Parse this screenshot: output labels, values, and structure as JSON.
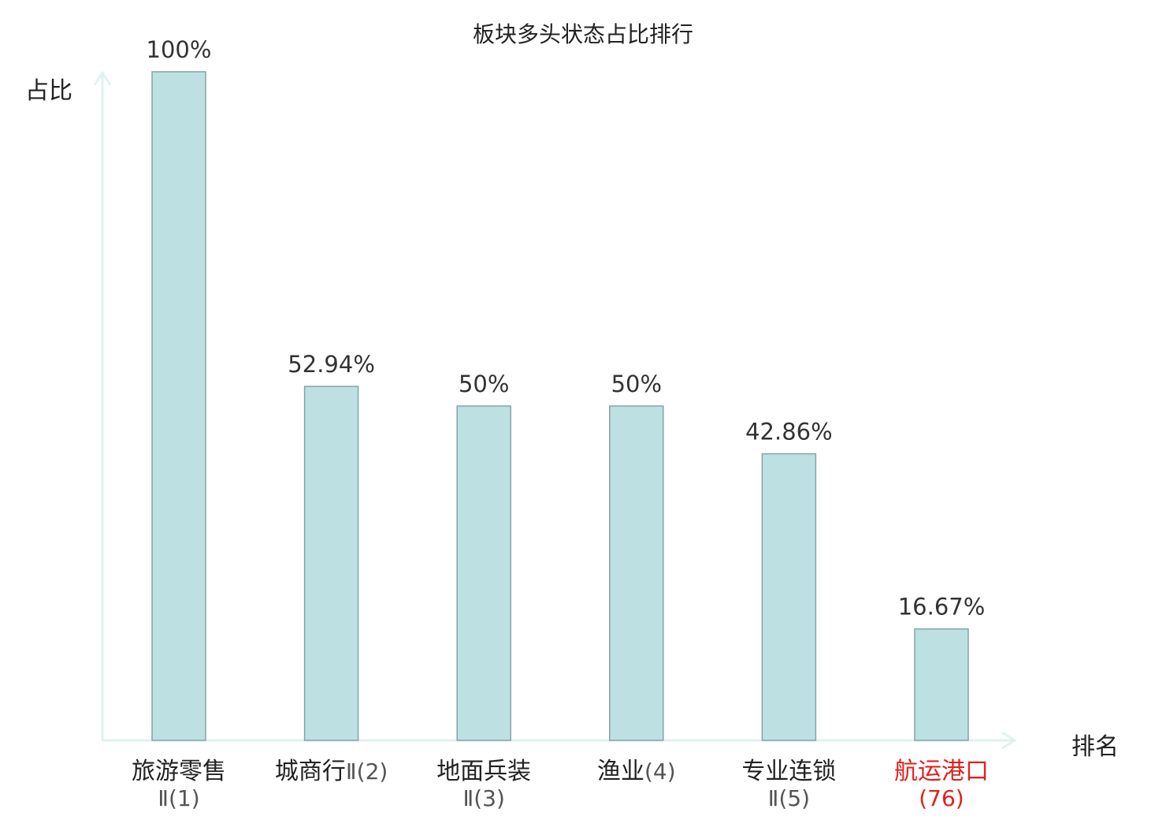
{
  "chart_data": {
    "type": "bar",
    "title": "板块多头状态占比排行",
    "ylabel": "占比",
    "xlabel": "排名",
    "ylim": [
      0,
      100
    ],
    "categories": [
      {
        "name": "旅游零售",
        "rank": "Ⅱ(1)",
        "highlight": false
      },
      {
        "name": "城商行",
        "rank": "Ⅱ(2)",
        "highlight": false
      },
      {
        "name": "地面兵装",
        "rank": "Ⅱ(3)",
        "highlight": false
      },
      {
        "name": "渔业",
        "rank": "(4)",
        "highlight": false
      },
      {
        "name": "专业连锁",
        "rank": "Ⅱ(5)",
        "highlight": false
      },
      {
        "name": "航运港口",
        "rank": "(76)",
        "highlight": true
      }
    ],
    "values": [
      100,
      52.94,
      50,
      50,
      42.86,
      16.67
    ],
    "data_labels": [
      "100%",
      "52.94%",
      "50%",
      "50%",
      "42.86%",
      "16.67%"
    ],
    "colors": {
      "bar_fill": "#bde0e3",
      "bar_stroke": "#86a3a6",
      "axis": "#e0f2ef",
      "highlight_text": "#e21f1f",
      "text": "#222222"
    }
  }
}
